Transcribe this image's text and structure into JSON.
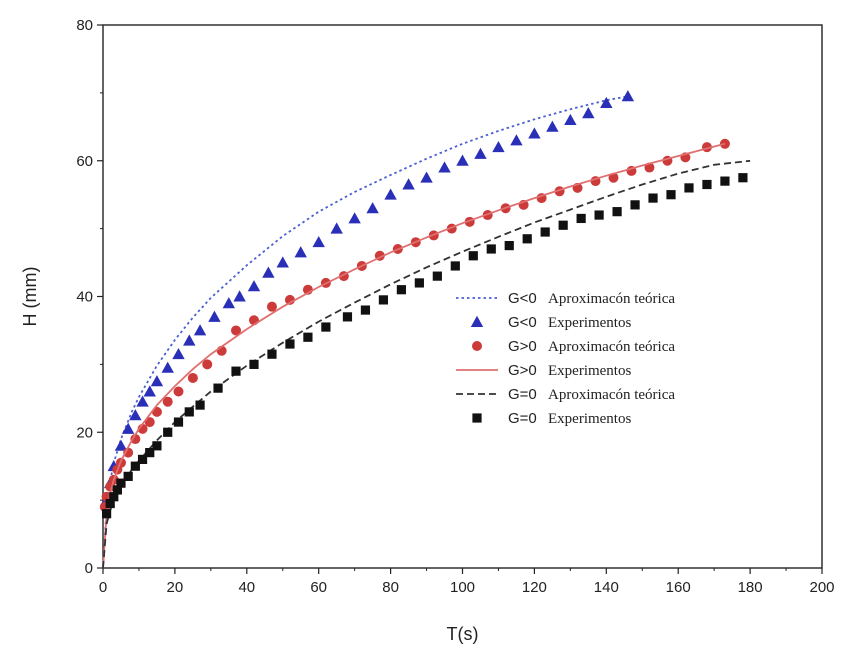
{
  "chart_data": {
    "type": "scatter",
    "title": "",
    "xlabel": "T(s)",
    "ylabel": "H (mm)",
    "xlim": [
      0,
      200
    ],
    "ylim": [
      0,
      80
    ],
    "x_ticks": [
      0,
      20,
      40,
      60,
      80,
      100,
      120,
      140,
      160,
      180,
      200
    ],
    "y_ticks": [
      0,
      20,
      40,
      60,
      80
    ],
    "grid": false,
    "legend_position": "center-right",
    "series": [
      {
        "name": "G<0 Aproximacón teórica",
        "legend_label": "G<0",
        "legend_text": "Aproximacón teórica",
        "kind": "line",
        "line_style": "dotted",
        "color": "#4a5fd0",
        "x": [
          0,
          1,
          2,
          3,
          5,
          8,
          10,
          15,
          20,
          25,
          30,
          40,
          50,
          60,
          70,
          80,
          90,
          100,
          110,
          120,
          130,
          140,
          146
        ],
        "y": [
          0,
          9,
          12.8,
          15.5,
          19.0,
          23.0,
          25.2,
          29.8,
          33.6,
          36.9,
          39.8,
          44.6,
          48.9,
          52.5,
          55.4,
          57.9,
          60.3,
          62.5,
          64.4,
          66.1,
          67.6,
          68.9,
          69.5
        ]
      },
      {
        "name": "G<0 Experimentos",
        "legend_label": "G<0",
        "legend_text": "Experimentos",
        "kind": "marker",
        "marker": "triangle",
        "color": "#2a2fb8",
        "x": [
          1,
          2,
          3,
          5,
          7,
          9,
          11,
          13,
          15,
          18,
          21,
          24,
          27,
          31,
          35,
          38,
          42,
          46,
          50,
          55,
          60,
          65,
          70,
          75,
          80,
          85,
          90,
          95,
          100,
          105,
          110,
          115,
          120,
          125,
          130,
          135,
          140,
          146
        ],
        "y": [
          10,
          12.5,
          15,
          18,
          20.5,
          22.5,
          24.5,
          26,
          27.5,
          29.5,
          31.5,
          33.5,
          35,
          37,
          39,
          40,
          41.5,
          43.5,
          45,
          46.5,
          48,
          50,
          51.5,
          53,
          55,
          56.5,
          57.5,
          59,
          60,
          61,
          62,
          63,
          64,
          65,
          66,
          67,
          68.5,
          69.5
        ]
      },
      {
        "name": "G>0 Aproximacón teórica",
        "legend_label": "G>0",
        "legend_text": "Aproximacón teórica",
        "kind": "marker",
        "marker": "circle",
        "color": "#cc3a3a",
        "x": [
          0.5,
          1,
          2,
          3,
          4,
          5,
          7,
          9,
          11,
          13,
          15,
          18,
          21,
          25,
          29,
          33,
          37,
          42,
          47,
          52,
          57,
          62,
          67,
          72,
          77,
          82,
          87,
          92,
          97,
          102,
          107,
          112,
          117,
          122,
          127,
          132,
          137,
          142,
          147,
          152,
          157,
          162,
          168,
          173
        ],
        "y": [
          9,
          10.5,
          12,
          13,
          14.5,
          15.5,
          17,
          19,
          20.5,
          21.5,
          23,
          24.5,
          26,
          28,
          30,
          32,
          35,
          36.5,
          38.5,
          39.5,
          41,
          42,
          43,
          44.5,
          46,
          47,
          48,
          49,
          50,
          51,
          52,
          53,
          53.5,
          54.5,
          55.5,
          56,
          57,
          57.5,
          58.5,
          59,
          60,
          60.5,
          62,
          62.5
        ]
      },
      {
        "name": "G>0 Experimentos",
        "legend_label": "G>0",
        "legend_text": "Experimentos",
        "kind": "line",
        "line_style": "solid",
        "color": "#e07070",
        "x": [
          0,
          1,
          2,
          3,
          5,
          8,
          10,
          15,
          20,
          25,
          30,
          40,
          50,
          60,
          70,
          80,
          90,
          100,
          110,
          120,
          130,
          140,
          150,
          160,
          173
        ],
        "y": [
          0,
          8,
          11,
          13,
          15.8,
          18.8,
          20.5,
          24,
          26.8,
          29.3,
          31.5,
          35.2,
          38.5,
          41.4,
          44,
          46.5,
          48.7,
          50.8,
          52.7,
          54.5,
          56.2,
          57.8,
          59.3,
          60.7,
          62.5
        ]
      },
      {
        "name": "G=0 Aproximacón teórica",
        "legend_label": "G=0",
        "legend_text": "Aproximacón teórica",
        "kind": "line",
        "line_style": "dashed",
        "color": "#333333",
        "x": [
          0,
          1,
          2,
          3,
          5,
          8,
          10,
          15,
          20,
          25,
          30,
          40,
          50,
          60,
          70,
          80,
          90,
          100,
          110,
          120,
          130,
          140,
          150,
          160,
          170,
          180
        ],
        "y": [
          0,
          6.5,
          8.5,
          10,
          12,
          14.5,
          15.8,
          18.8,
          21.5,
          23.8,
          26,
          29.8,
          33.2,
          36.3,
          39.1,
          41.8,
          44.3,
          46.6,
          48.8,
          50.9,
          52.8,
          54.7,
          56.5,
          58.1,
          59.4,
          60
        ]
      },
      {
        "name": "G=0 Experimentos",
        "legend_label": "G=0",
        "legend_text": "Experimentos",
        "kind": "marker",
        "marker": "square",
        "color": "#111111",
        "x": [
          1,
          2,
          3,
          4,
          5,
          7,
          9,
          11,
          13,
          15,
          18,
          21,
          24,
          27,
          32,
          37,
          42,
          47,
          52,
          57,
          62,
          68,
          73,
          78,
          83,
          88,
          93,
          98,
          103,
          108,
          113,
          118,
          123,
          128,
          133,
          138,
          143,
          148,
          153,
          158,
          163,
          168,
          173,
          178
        ],
        "y": [
          8,
          9.5,
          10.5,
          11.5,
          12.5,
          13.5,
          15,
          16,
          17,
          18,
          20,
          21.5,
          23,
          24,
          26.5,
          29,
          30,
          31.5,
          33,
          34,
          35.5,
          37,
          38,
          39.5,
          41,
          42,
          43,
          44.5,
          46,
          47,
          47.5,
          48.5,
          49.5,
          50.5,
          51.5,
          52,
          52.5,
          53.5,
          54.5,
          55,
          56,
          56.5,
          57,
          57.5
        ]
      }
    ]
  }
}
